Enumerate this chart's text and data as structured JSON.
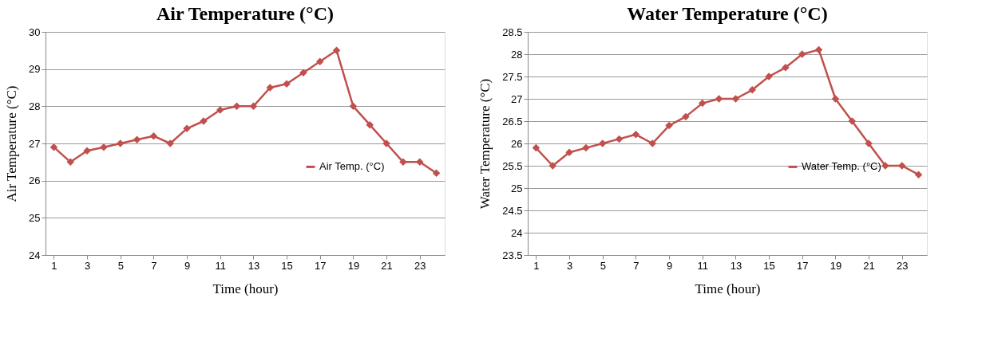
{
  "chart_data": [
    {
      "type": "line",
      "title": "Air Temperature (°C)",
      "xlabel": "Time (hour)",
      "ylabel": "Air Temperature (°C)",
      "x": [
        1,
        2,
        3,
        4,
        5,
        6,
        7,
        8,
        9,
        10,
        11,
        12,
        13,
        14,
        15,
        16,
        17,
        18,
        19,
        20,
        21,
        22,
        23,
        24
      ],
      "xlim": [
        0.5,
        24.5
      ],
      "xticks": [
        1,
        3,
        5,
        7,
        9,
        11,
        13,
        15,
        17,
        19,
        21,
        23
      ],
      "series": [
        {
          "name": "Air Temp. (°C)",
          "color": "#c0504d",
          "values": [
            26.9,
            26.5,
            26.8,
            26.9,
            27.0,
            27.1,
            27.2,
            27.0,
            27.4,
            27.6,
            27.9,
            28.0,
            28.0,
            28.5,
            28.6,
            28.9,
            29.2,
            29.5,
            28.0,
            27.5,
            27.0,
            26.5,
            26.5,
            26.2
          ]
        }
      ],
      "ylim": [
        24,
        30
      ],
      "yticks": [
        24,
        25,
        26,
        27,
        28,
        29,
        30
      ],
      "grid": "y",
      "legend": "right",
      "marker": "diamond",
      "line_style": "solid"
    },
    {
      "type": "line",
      "title": "Water Temperature (°C)",
      "xlabel": "Time (hour)",
      "ylabel": "Water Temperature (°C)",
      "x": [
        1,
        2,
        3,
        4,
        5,
        6,
        7,
        8,
        9,
        10,
        11,
        12,
        13,
        14,
        15,
        16,
        17,
        18,
        19,
        20,
        21,
        22,
        23,
        24
      ],
      "xlim": [
        0.5,
        24.5
      ],
      "xticks": [
        1,
        3,
        5,
        7,
        9,
        11,
        13,
        15,
        17,
        19,
        21,
        23
      ],
      "series": [
        {
          "name": "Water Temp. (°C)",
          "color": "#c0504d",
          "values": [
            25.9,
            25.5,
            25.8,
            25.9,
            26.0,
            26.1,
            26.2,
            26.0,
            26.4,
            26.6,
            26.9,
            27.0,
            27.0,
            27.2,
            27.5,
            27.7,
            28.0,
            28.1,
            27.0,
            26.5,
            26.0,
            25.5,
            25.5,
            25.3
          ]
        }
      ],
      "ylim": [
        23.5,
        28.5
      ],
      "yticks": [
        23.5,
        24,
        24.5,
        25,
        25.5,
        26,
        26.5,
        27,
        27.5,
        28,
        28.5
      ],
      "grid": "y",
      "legend": "right",
      "marker": "diamond",
      "line_style": "solid"
    }
  ]
}
